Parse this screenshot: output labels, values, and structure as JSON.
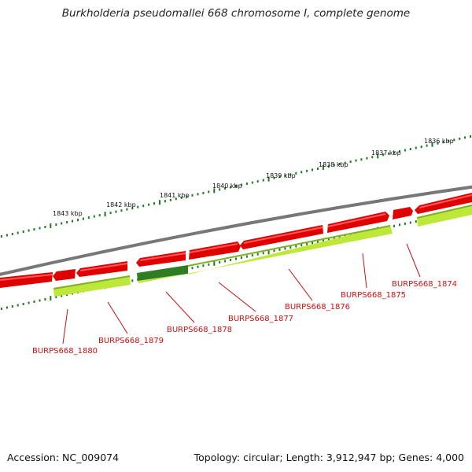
{
  "title": "Burkholderia pseudomallei 668 chromosome I, complete genome",
  "footer": {
    "accession": "Accession: NC_009074",
    "summary": "Topology: circular; Length: 3,912,947 bp; Genes: 4,000"
  },
  "colors": {
    "backbone": "#777777",
    "forward_gene": "#e00000",
    "forward_gene_highlight": "#ff4a4a",
    "reverse_gene": "#bde83a",
    "reverse_gene_dark": "#2f7d22",
    "tick": "#1e7a1e",
    "gene_label": "#cc1111"
  },
  "kbp_labels": [
    "1843 kbp",
    "1842 kbp",
    "1841 kbp",
    "1840 kbp",
    "1839 kbp",
    "1838 kbp",
    "1837 kbp",
    "1836 kbp"
  ],
  "gene_labels": [
    "BURPS668_1880",
    "BURPS668_1879",
    "BURPS668_1878",
    "BURPS668_1877",
    "BURPS668_1876",
    "BURPS668_1875",
    "BURPS668_1874"
  ]
}
